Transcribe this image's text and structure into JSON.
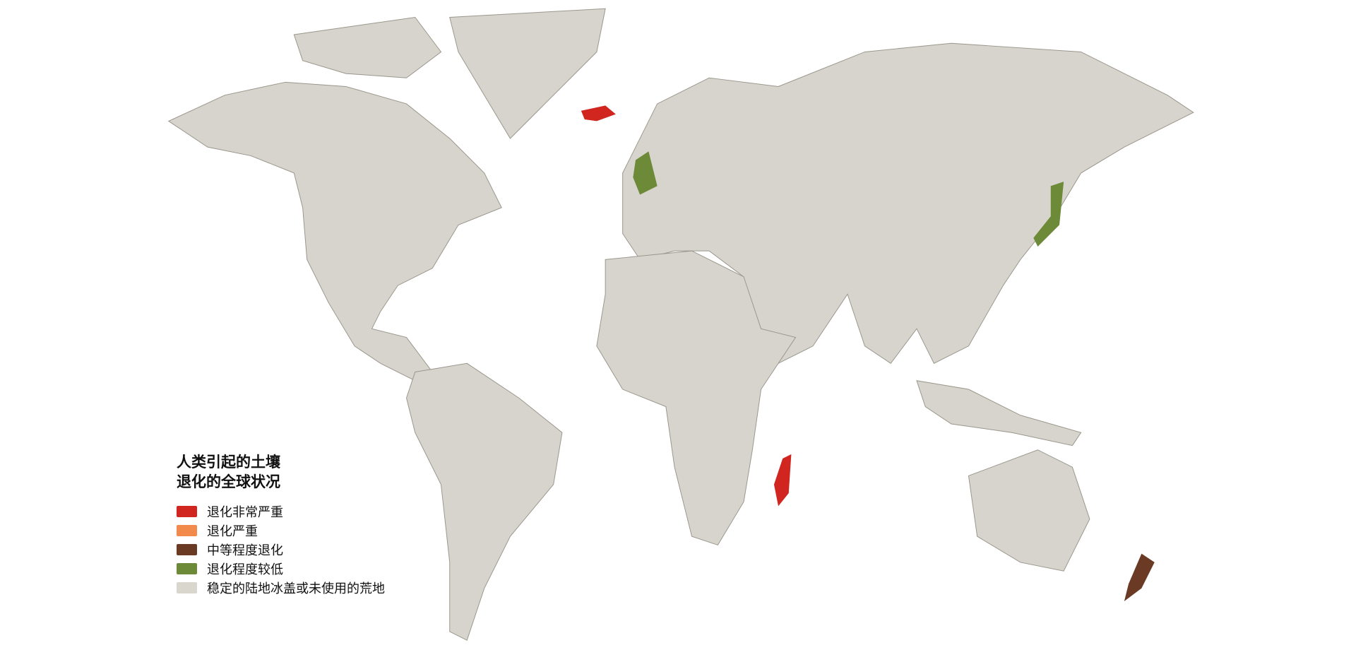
{
  "legend": {
    "title_line1": "人类引起的土壤",
    "title_line2": "退化的全球状况",
    "items": [
      {
        "label": "退化非常严重",
        "color": "#d0261f"
      },
      {
        "label": "退化严重",
        "color": "#f28a4c"
      },
      {
        "label": "中等程度退化",
        "color": "#6a3a24"
      },
      {
        "label": "退化程度较低",
        "color": "#6d8a38"
      },
      {
        "label": "稳定的陆地冰盖或未使用的荒地",
        "color": "#d8d6cd"
      }
    ]
  }
}
